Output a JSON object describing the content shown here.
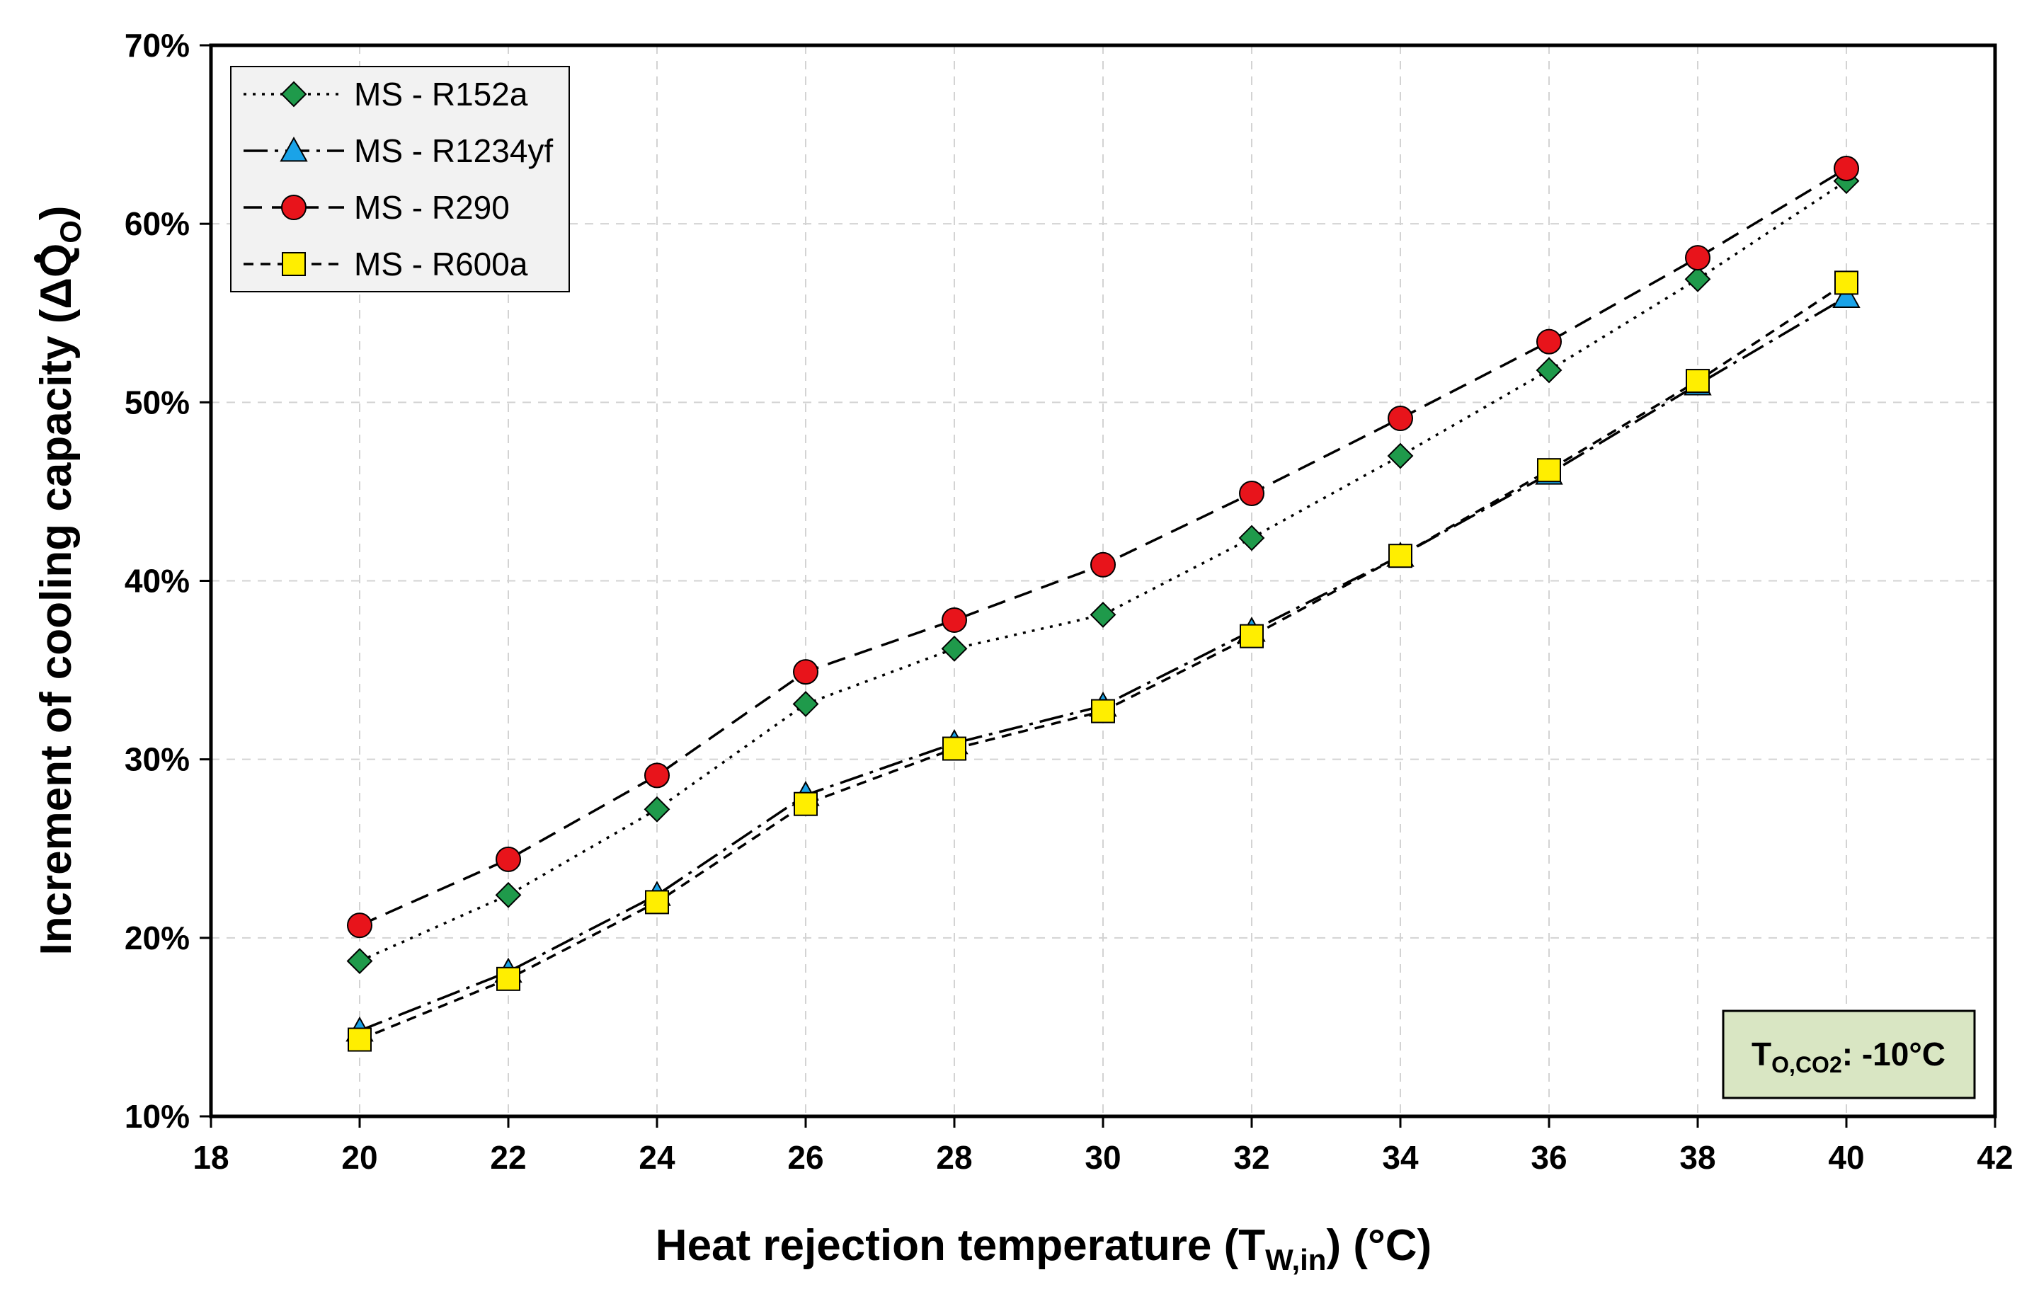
{
  "chart_data": {
    "type": "line",
    "title": "",
    "xlabel": {
      "main": "Heat rejection temperature (T",
      "sub": "W,in",
      "tail": ") (°C)"
    },
    "ylabel": {
      "main": "Increment of cooling capacity (ΔQ",
      "sub": "O",
      "tail": ")"
    },
    "xlim": [
      18,
      42
    ],
    "ylim": [
      0.1,
      0.7
    ],
    "xticks": [
      18,
      20,
      22,
      24,
      26,
      28,
      30,
      32,
      34,
      36,
      38,
      40,
      42
    ],
    "xtick_labels": [
      "18",
      "20",
      "22",
      "24",
      "26",
      "28",
      "30",
      "32",
      "34",
      "36",
      "38",
      "40",
      "42"
    ],
    "yticks": [
      0.1,
      0.2,
      0.3,
      0.4,
      0.5,
      0.6,
      0.7
    ],
    "ytick_labels": [
      "10%",
      "20%",
      "30%",
      "40%",
      "50%",
      "60%",
      "70%"
    ],
    "grid": true,
    "legend_position": "top-left",
    "x": [
      20,
      22,
      24,
      26,
      28,
      30,
      32,
      34,
      36,
      38,
      40
    ],
    "series": [
      {
        "name": "MS - R152a",
        "marker": "diamond",
        "line": "dotted",
        "color": "#1f9a4b",
        "values": [
          0.187,
          0.224,
          0.272,
          0.331,
          0.362,
          0.381,
          0.424,
          0.47,
          0.518,
          0.569,
          0.624
        ]
      },
      {
        "name": "MS - R1234yf",
        "marker": "triangle",
        "line": "dash-dot",
        "color": "#1aa3e8",
        "values": [
          0.148,
          0.181,
          0.224,
          0.28,
          0.309,
          0.33,
          0.372,
          0.414,
          0.46,
          0.51,
          0.559
        ]
      },
      {
        "name": "MS - R290",
        "marker": "circle",
        "line": "dashed",
        "color": "#e8141b",
        "values": [
          0.207,
          0.244,
          0.291,
          0.349,
          0.378,
          0.409,
          0.449,
          0.491,
          0.534,
          0.581,
          0.631
        ]
      },
      {
        "name": "MS - R600a",
        "marker": "square",
        "line": "short-dashed",
        "color": "#ffee00",
        "values": [
          0.143,
          0.177,
          0.22,
          0.275,
          0.306,
          0.327,
          0.369,
          0.414,
          0.462,
          0.512,
          0.567
        ]
      }
    ],
    "annotation": {
      "main": "T",
      "sub": "O,CO2",
      "tail": ": -10°C",
      "background": "#d9e6c3"
    }
  }
}
